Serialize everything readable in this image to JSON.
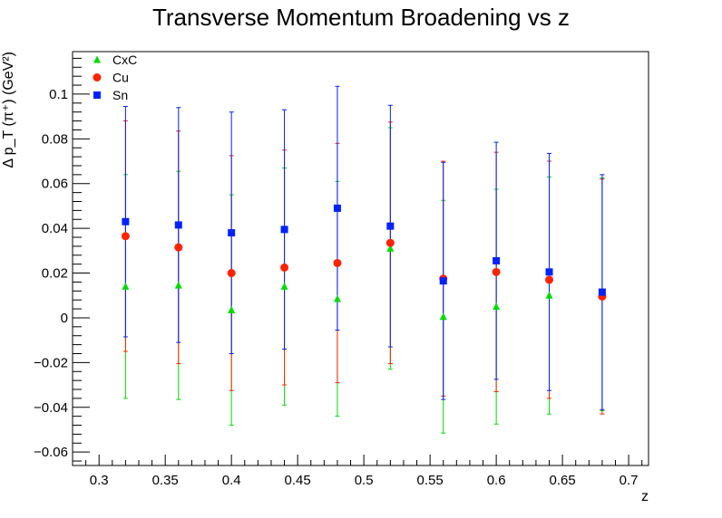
{
  "chart_data": {
    "type": "scatter",
    "title": "Transverse Momentum Broadening vs z",
    "xlabel": "z",
    "ylabel": "Δ p_T (π⁺) (GeV²)",
    "xlim": [
      0.28,
      0.715
    ],
    "ylim": [
      -0.066,
      0.119
    ],
    "xticks": [
      0.3,
      0.35,
      0.4,
      0.45,
      0.5,
      0.55,
      0.6,
      0.65,
      0.7
    ],
    "xtick_labels": [
      "0.3",
      "0.35",
      "0.4",
      "0.45",
      "0.5",
      "0.55",
      "0.6",
      "0.65",
      "0.7"
    ],
    "yticks": [
      -0.06,
      -0.04,
      -0.02,
      0,
      0.02,
      0.04,
      0.06,
      0.08,
      0.1
    ],
    "ytick_labels": [
      "−0.06",
      "−0.04",
      "−0.02",
      "0",
      "0.02",
      "0.04",
      "0.06",
      "0.08",
      "0.1"
    ],
    "grid": false,
    "legend_position": "top-left",
    "x": [
      0.32,
      0.36,
      0.4,
      0.44,
      0.48,
      0.52,
      0.56,
      0.6,
      0.64,
      0.68
    ],
    "series": [
      {
        "name": "CxC",
        "marker": "triangle",
        "color": "#00dd00",
        "values": [
          0.014,
          0.0145,
          0.0035,
          0.014,
          0.0085,
          0.031,
          0.0005,
          0.005,
          0.01,
          0.0105
        ],
        "errors": [
          0.05,
          0.051,
          0.0515,
          0.053,
          0.0525,
          0.054,
          0.052,
          0.0525,
          0.053,
          0.052
        ]
      },
      {
        "name": "Cu",
        "marker": "circle",
        "color": "#ff2200",
        "values": [
          0.0365,
          0.0315,
          0.02,
          0.0225,
          0.0245,
          0.0335,
          0.0175,
          0.0205,
          0.017,
          0.0095
        ],
        "errors": [
          0.0515,
          0.052,
          0.0525,
          0.0525,
          0.0535,
          0.054,
          0.0525,
          0.0535,
          0.053,
          0.0525
        ]
      },
      {
        "name": "Sn",
        "marker": "square",
        "color": "#0022ff",
        "values": [
          0.043,
          0.0415,
          0.038,
          0.0395,
          0.049,
          0.041,
          0.0165,
          0.0255,
          0.0205,
          0.0115
        ],
        "errors": [
          0.0515,
          0.0525,
          0.054,
          0.0535,
          0.0545,
          0.054,
          0.053,
          0.053,
          0.053,
          0.0525
        ]
      }
    ]
  }
}
